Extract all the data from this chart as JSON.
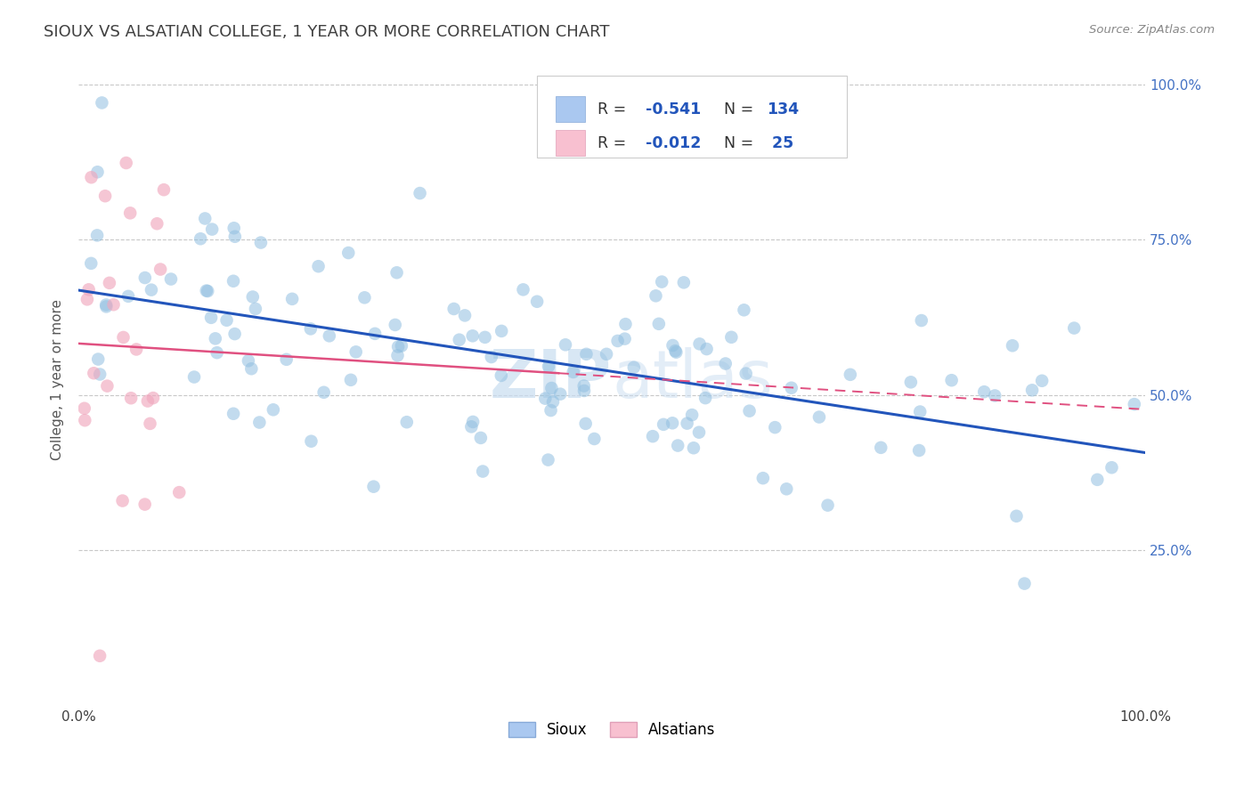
{
  "title": "SIOUX VS ALSATIAN COLLEGE, 1 YEAR OR MORE CORRELATION CHART",
  "source_text": "Source: ZipAtlas.com",
  "ylabel": "College, 1 year or more",
  "watermark": "ZIPatlas",
  "watermark_color": "#c8ddf0",
  "blue_dot_color": "#91bfe0",
  "pink_dot_color": "#f0a8be",
  "blue_line_color": "#2255bb",
  "pink_line_color": "#e05080",
  "grid_color": "#c8c8c8",
  "background_color": "#ffffff",
  "title_color": "#404040",
  "title_fontsize": 13,
  "axis_label_color": "#555555",
  "legend_text_color": "#2255bb",
  "legend_R_color": "#2255bb",
  "legend_N_color": "#2255bb",
  "right_tick_color": "#4472c4",
  "sioux_R": -0.541,
  "sioux_N": 134,
  "alsatian_R": -0.012,
  "alsatian_N": 25,
  "xlim": [
    0.0,
    1.0
  ],
  "ylim": [
    0.0,
    1.05
  ]
}
